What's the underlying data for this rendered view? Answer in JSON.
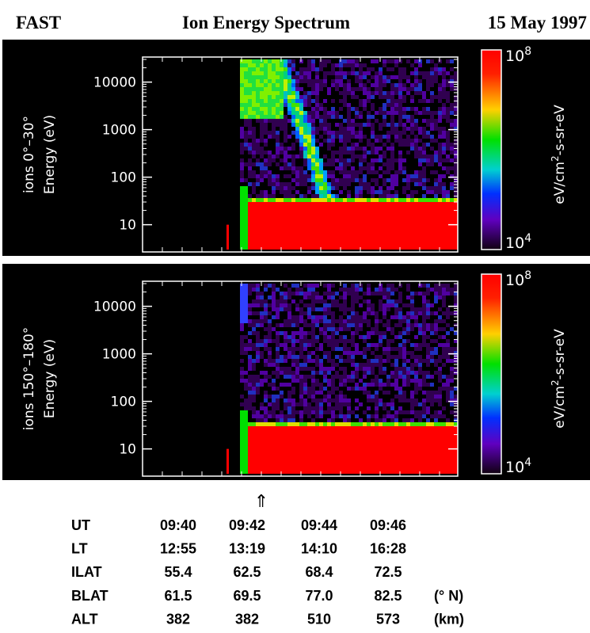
{
  "header": {
    "left": "FAST",
    "title": "Ion Energy Spectrum",
    "right": "15 May 1997"
  },
  "panels": [
    {
      "ylabel": [
        "ions 0°–30°",
        "Energy (eV)"
      ],
      "ylim": [
        3,
        30000
      ],
      "yticks": [
        10000,
        1000,
        100,
        10
      ],
      "colorbar": {
        "top": [
          "10",
          "8"
        ],
        "bottom": [
          "10",
          "4"
        ],
        "unit": [
          "eV/cm",
          "2",
          "-s-sr-eV"
        ]
      }
    },
    {
      "ylabel": [
        "ions 150°–180°",
        "Energy (eV)"
      ],
      "ylim": [
        3,
        30000
      ],
      "yticks": [
        10000,
        1000,
        100,
        10
      ],
      "colorbar": {
        "top": [
          "10",
          "8"
        ],
        "bottom": [
          "10",
          "4"
        ],
        "unit": [
          "eV/cm",
          "2",
          "-s-sr-eV"
        ]
      }
    }
  ],
  "marker": "⇑",
  "table": {
    "rows": [
      [
        "UT",
        "09:40",
        "09:42",
        "09:44",
        "09:46",
        null
      ],
      [
        "LT",
        "12:55",
        "13:19",
        "14:10",
        "16:28",
        null
      ],
      [
        "ILAT",
        "55.4",
        "62.5",
        "68.4",
        "72.5",
        null
      ],
      [
        "BLAT",
        "61.5",
        "69.5",
        "77.0",
        "82.5",
        "(° N)"
      ],
      [
        "ALT",
        "382",
        "382",
        "510",
        "573",
        "(km)"
      ]
    ]
  }
}
